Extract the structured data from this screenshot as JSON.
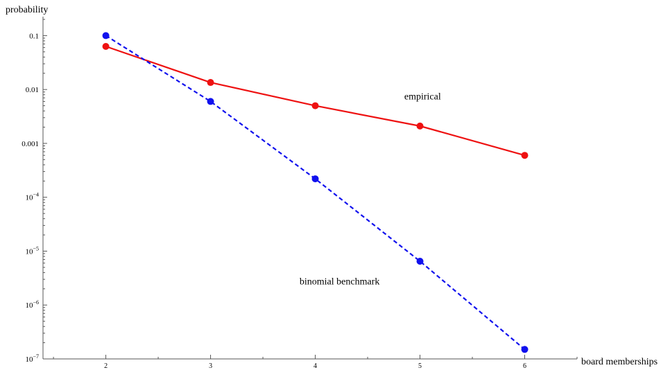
{
  "chart_data": {
    "type": "line",
    "title": "",
    "xlabel": "board memberships",
    "ylabel": "probability",
    "yscale": "log",
    "xlim": [
      1.4,
      6.5
    ],
    "ylim": [
      1e-07,
      0.2
    ],
    "x_ticks": [
      {
        "value": 2,
        "label": "2"
      },
      {
        "value": 3,
        "label": "3"
      },
      {
        "value": 4,
        "label": "4"
      },
      {
        "value": 5,
        "label": "5"
      },
      {
        "value": 6,
        "label": "6"
      }
    ],
    "y_ticks": [
      {
        "value": 0.1,
        "label": "0.1"
      },
      {
        "value": 0.01,
        "label": "0.01"
      },
      {
        "value": 0.001,
        "label": "0.001"
      },
      {
        "value": 0.0001,
        "label": "10",
        "sup": "−4"
      },
      {
        "value": 1e-05,
        "label": "10",
        "sup": "−5"
      },
      {
        "value": 1e-06,
        "label": "10",
        "sup": "−6"
      },
      {
        "value": 1e-07,
        "label": "10",
        "sup": "−7"
      }
    ],
    "grid": false,
    "series": [
      {
        "name": "empirical",
        "color": "#ee1111",
        "dash": "solid",
        "x": [
          2,
          3,
          4,
          5,
          6
        ],
        "values": [
          0.063,
          0.0135,
          0.005,
          0.0021,
          0.0006
        ]
      },
      {
        "name": "binomial benchmark",
        "color": "#1111ee",
        "dash": "dashed",
        "x": [
          2,
          3,
          4,
          5,
          6
        ],
        "values": [
          0.1,
          0.006,
          0.00022,
          6.5e-06,
          1.5e-07
        ]
      }
    ],
    "annotations": [
      {
        "text": "empirical",
        "x": 4.85,
        "y": 0.0065
      },
      {
        "text": "binomial benchmark",
        "x": 3.85,
        "y": 2.4e-06
      }
    ]
  }
}
